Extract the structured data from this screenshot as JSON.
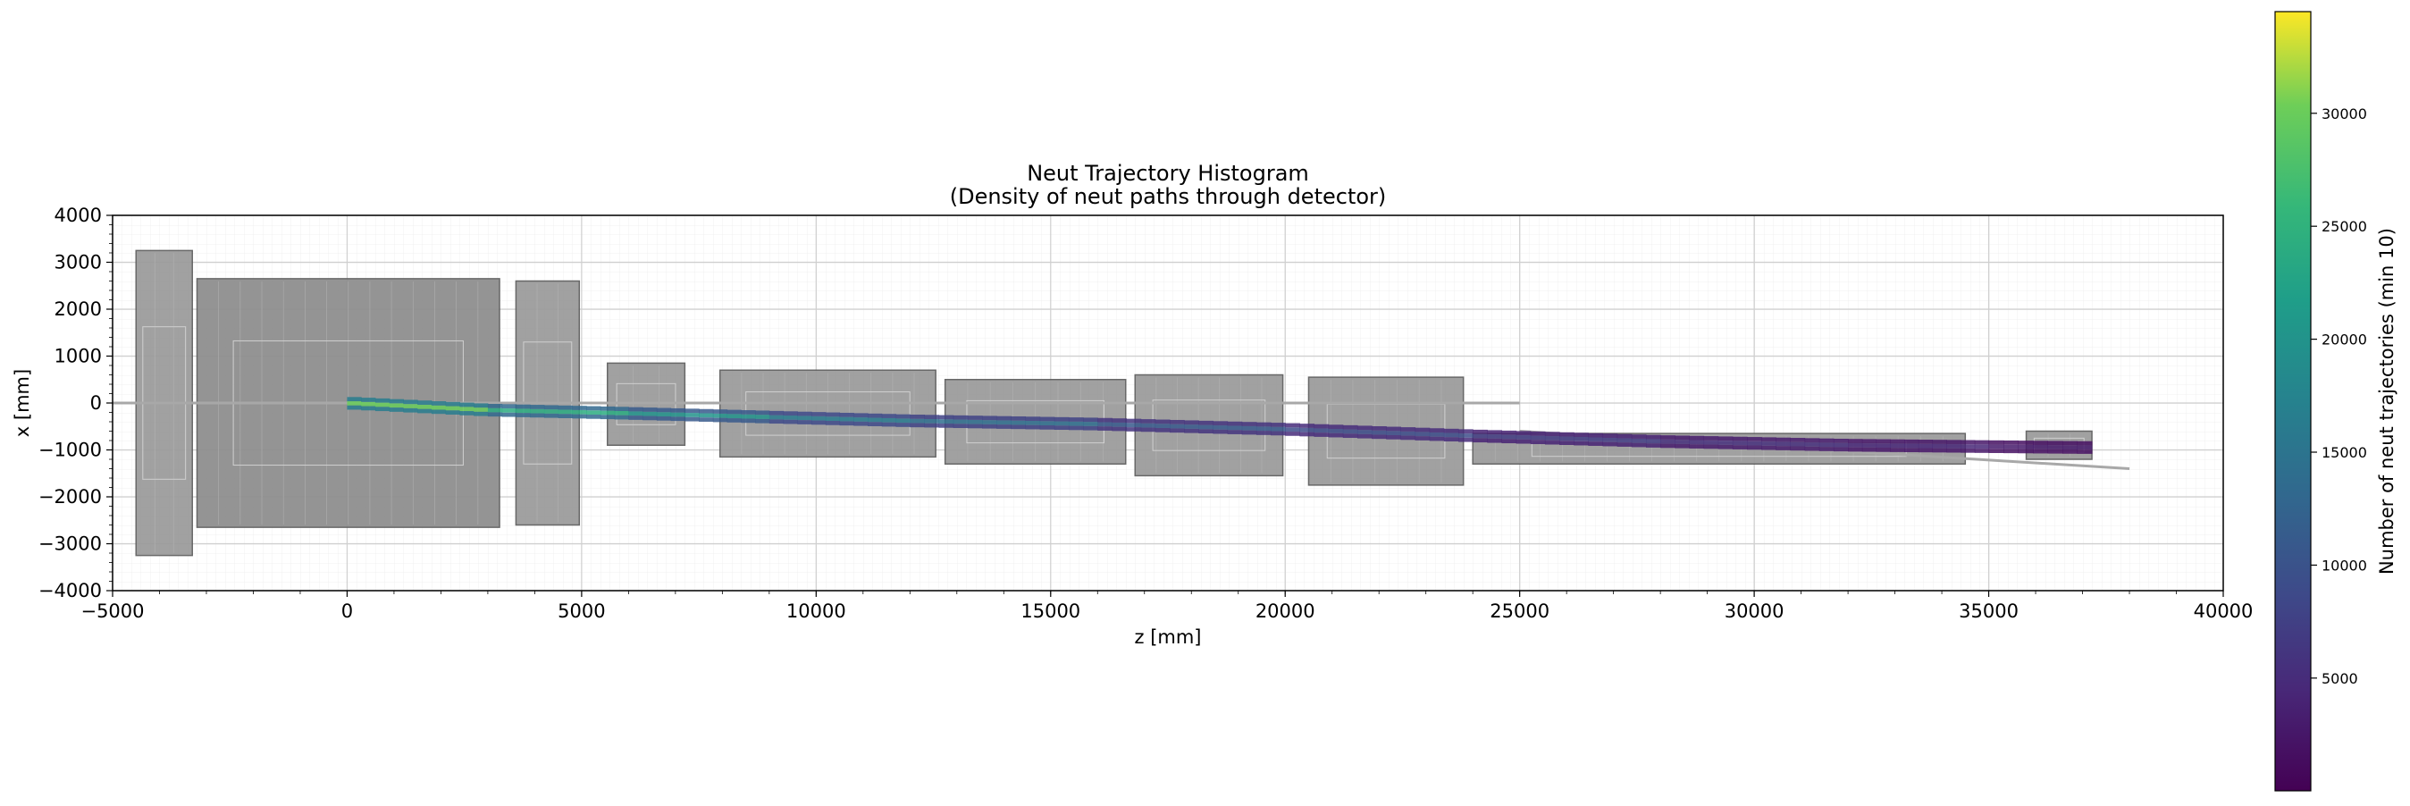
{
  "chart_data": {
    "type": "heatmap",
    "title": "Neut Trajectory Histogram",
    "subtitle": "(Density of neut paths through detector)",
    "xlabel": "z [mm]",
    "ylabel": "x [mm]",
    "xlim": [
      -5000,
      40000
    ],
    "ylim": [
      -4000,
      4000
    ],
    "x_ticks": [
      "-5000",
      "0",
      "5000",
      "10000",
      "15000",
      "20000",
      "25000",
      "30000",
      "35000",
      "40000"
    ],
    "y_ticks": [
      "4000",
      "3000",
      "2000",
      "1000",
      "0",
      "-1000",
      "-2000",
      "-3000",
      "-4000"
    ],
    "grid": true,
    "colorbar": {
      "label": "Number of neut trajectories (min 10)",
      "colormap": "viridis",
      "range": [
        10,
        34500
      ],
      "ticks": [
        "5000",
        "10000",
        "15000",
        "20000",
        "25000",
        "30000"
      ]
    },
    "track_segments": [
      {
        "z0": 0,
        "z1": 3000,
        "x0": 0,
        "x1": -150,
        "count": 30000
      },
      {
        "z0": 3000,
        "z1": 6000,
        "x0": -150,
        "x1": -220,
        "count": 24000
      },
      {
        "z0": 6000,
        "z1": 9000,
        "x0": -220,
        "x1": -300,
        "count": 20000
      },
      {
        "z0": 9000,
        "z1": 12000,
        "x0": -300,
        "x1": -380,
        "count": 16000
      },
      {
        "z0": 12000,
        "z1": 16000,
        "x0": -380,
        "x1": -450,
        "count": 14000
      },
      {
        "z0": 16000,
        "z1": 20000,
        "x0": -450,
        "x1": -560,
        "count": 11000
      },
      {
        "z0": 20000,
        "z1": 24000,
        "x0": -560,
        "x1": -700,
        "count": 9000
      },
      {
        "z0": 24000,
        "z1": 28000,
        "x0": -700,
        "x1": -820,
        "count": 7000
      },
      {
        "z0": 28000,
        "z1": 32000,
        "x0": -820,
        "x1": -900,
        "count": 5500
      },
      {
        "z0": 32000,
        "z1": 35000,
        "x0": -900,
        "x1": -930,
        "count": 4500
      },
      {
        "z0": 35000,
        "z1": 37200,
        "x0": -930,
        "x1": -950,
        "count": 3000
      }
    ],
    "detector_blocks": [
      {
        "z0": -4500,
        "z1": -3300,
        "x0": -3250,
        "x1": 3250
      },
      {
        "z0": -3200,
        "z1": 3250,
        "x0": -2650,
        "x1": 2650
      },
      {
        "z0": 3600,
        "z1": 4950,
        "x0": -2600,
        "x1": 2600
      },
      {
        "z0": 5550,
        "z1": 7200,
        "x0": -900,
        "x1": 850
      },
      {
        "z0": 7950,
        "z1": 12550,
        "x0": -1150,
        "x1": 700
      },
      {
        "z0": 12750,
        "z1": 16600,
        "x0": -1300,
        "x1": 500
      },
      {
        "z0": 16800,
        "z1": 19950,
        "x0": -1550,
        "x1": 600
      },
      {
        "z0": 20500,
        "z1": 23800,
        "x0": -1750,
        "x1": 550
      },
      {
        "z0": 24000,
        "z1": 34500,
        "x0": -1300,
        "x1": -650
      },
      {
        "z0": 35800,
        "z1": 37200,
        "x0": -1200,
        "x1": -600
      }
    ]
  }
}
